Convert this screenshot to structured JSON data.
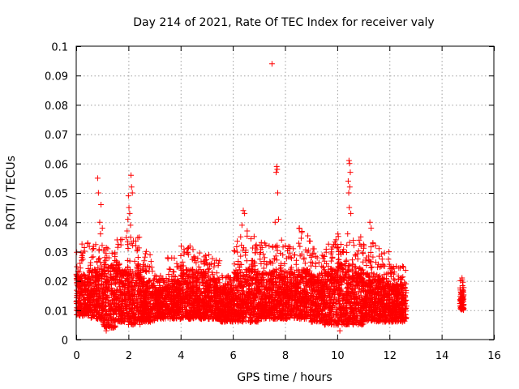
{
  "chart_data": {
    "type": "scatter",
    "title": "Day 214 of 2021, Rate Of TEC Index for receiver valy",
    "xlabel": "GPS time / hours",
    "ylabel": "ROTI / TECUs",
    "xlim": [
      0,
      16
    ],
    "ylim": [
      0,
      0.1
    ],
    "xticks": [
      0,
      2,
      4,
      6,
      8,
      10,
      12,
      14,
      16
    ],
    "xtick_labels": [
      "0",
      "2",
      "4",
      "6",
      "8",
      "10",
      "12",
      "14",
      "16"
    ],
    "yticks": [
      0,
      0.01,
      0.02,
      0.03,
      0.04,
      0.05,
      0.06,
      0.07,
      0.08,
      0.09,
      0.1
    ],
    "ytick_labels": [
      "0",
      "0.01",
      "0.02",
      "0.03",
      "0.04",
      "0.05",
      "0.06",
      "0.07",
      "0.08",
      "0.09",
      "0.1"
    ],
    "grid": true,
    "marker": "+",
    "color": "#ff0000",
    "bands": [
      {
        "x": [
          0.0,
          0.5
        ],
        "base": [
          0.008,
          0.022
        ],
        "max": 0.034
      },
      {
        "x": [
          0.5,
          1.0
        ],
        "base": [
          0.007,
          0.024
        ],
        "max": 0.033
      },
      {
        "x": [
          1.0,
          1.5
        ],
        "base": [
          0.004,
          0.025
        ],
        "max": 0.033
      },
      {
        "x": [
          1.5,
          2.0
        ],
        "base": [
          0.006,
          0.024
        ],
        "max": 0.036
      },
      {
        "x": [
          2.0,
          2.5
        ],
        "base": [
          0.005,
          0.024
        ],
        "max": 0.035
      },
      {
        "x": [
          2.5,
          3.0
        ],
        "base": [
          0.006,
          0.021
        ],
        "max": 0.031
      },
      {
        "x": [
          3.0,
          3.5
        ],
        "base": [
          0.007,
          0.018
        ],
        "max": 0.022
      },
      {
        "x": [
          3.5,
          4.0
        ],
        "base": [
          0.007,
          0.02
        ],
        "max": 0.028
      },
      {
        "x": [
          4.0,
          4.5
        ],
        "base": [
          0.007,
          0.024
        ],
        "max": 0.032
      },
      {
        "x": [
          4.5,
          5.0
        ],
        "base": [
          0.007,
          0.023
        ],
        "max": 0.03
      },
      {
        "x": [
          5.0,
          5.5
        ],
        "base": [
          0.007,
          0.021
        ],
        "max": 0.03
      },
      {
        "x": [
          5.5,
          6.0
        ],
        "base": [
          0.006,
          0.018
        ],
        "max": 0.022
      },
      {
        "x": [
          6.0,
          6.5
        ],
        "base": [
          0.006,
          0.023
        ],
        "max": 0.034
      },
      {
        "x": [
          6.5,
          7.0
        ],
        "base": [
          0.006,
          0.024
        ],
        "max": 0.036
      },
      {
        "x": [
          7.0,
          7.5
        ],
        "base": [
          0.007,
          0.023
        ],
        "max": 0.034
      },
      {
        "x": [
          7.5,
          8.0
        ],
        "base": [
          0.007,
          0.024
        ],
        "max": 0.035
      },
      {
        "x": [
          8.0,
          8.5
        ],
        "base": [
          0.007,
          0.023
        ],
        "max": 0.032
      },
      {
        "x": [
          8.5,
          9.0
        ],
        "base": [
          0.007,
          0.024
        ],
        "max": 0.038
      },
      {
        "x": [
          9.0,
          9.5
        ],
        "base": [
          0.006,
          0.022
        ],
        "max": 0.031
      },
      {
        "x": [
          9.5,
          10.0
        ],
        "base": [
          0.005,
          0.024
        ],
        "max": 0.034
      },
      {
        "x": [
          10.0,
          10.5
        ],
        "base": [
          0.005,
          0.026
        ],
        "max": 0.036
      },
      {
        "x": [
          10.5,
          11.0
        ],
        "base": [
          0.005,
          0.024
        ],
        "max": 0.034
      },
      {
        "x": [
          11.0,
          11.5
        ],
        "base": [
          0.006,
          0.023
        ],
        "max": 0.033
      },
      {
        "x": [
          11.5,
          12.0
        ],
        "base": [
          0.006,
          0.021
        ],
        "max": 0.03
      },
      {
        "x": [
          12.0,
          12.65
        ],
        "base": [
          0.006,
          0.019
        ],
        "max": 0.025
      },
      {
        "x": [
          14.7,
          14.85
        ],
        "base": [
          0.01,
          0.017
        ],
        "max": 0.021
      }
    ],
    "outliers": [
      {
        "x": 0.82,
        "y": 0.055
      },
      {
        "x": 0.85,
        "y": 0.05
      },
      {
        "x": 0.95,
        "y": 0.046
      },
      {
        "x": 0.9,
        "y": 0.04
      },
      {
        "x": 1.0,
        "y": 0.038
      },
      {
        "x": 0.93,
        "y": 0.036
      },
      {
        "x": 2.1,
        "y": 0.056
      },
      {
        "x": 2.12,
        "y": 0.052
      },
      {
        "x": 2.15,
        "y": 0.05
      },
      {
        "x": 2.0,
        "y": 0.049
      },
      {
        "x": 2.02,
        "y": 0.045
      },
      {
        "x": 2.05,
        "y": 0.043
      },
      {
        "x": 1.98,
        "y": 0.041
      },
      {
        "x": 2.08,
        "y": 0.039
      },
      {
        "x": 1.95,
        "y": 0.037
      },
      {
        "x": 1.7,
        "y": 0.034
      },
      {
        "x": 6.4,
        "y": 0.044
      },
      {
        "x": 6.45,
        "y": 0.043
      },
      {
        "x": 6.35,
        "y": 0.039
      },
      {
        "x": 6.55,
        "y": 0.037
      },
      {
        "x": 6.3,
        "y": 0.035
      },
      {
        "x": 7.5,
        "y": 0.094
      },
      {
        "x": 7.68,
        "y": 0.059
      },
      {
        "x": 7.7,
        "y": 0.058
      },
      {
        "x": 7.66,
        "y": 0.057
      },
      {
        "x": 7.72,
        "y": 0.05
      },
      {
        "x": 7.75,
        "y": 0.041
      },
      {
        "x": 7.62,
        "y": 0.04
      },
      {
        "x": 8.55,
        "y": 0.038
      },
      {
        "x": 9.95,
        "y": 0.034
      },
      {
        "x": 10.45,
        "y": 0.061
      },
      {
        "x": 10.47,
        "y": 0.06
      },
      {
        "x": 10.5,
        "y": 0.057
      },
      {
        "x": 10.42,
        "y": 0.054
      },
      {
        "x": 10.48,
        "y": 0.052
      },
      {
        "x": 10.44,
        "y": 0.05
      },
      {
        "x": 10.46,
        "y": 0.045
      },
      {
        "x": 10.52,
        "y": 0.043
      },
      {
        "x": 10.4,
        "y": 0.036
      },
      {
        "x": 11.25,
        "y": 0.04
      },
      {
        "x": 11.3,
        "y": 0.038
      },
      {
        "x": 10.9,
        "y": 0.035
      },
      {
        "x": 11.6,
        "y": 0.031
      },
      {
        "x": 1.15,
        "y": 0.003
      },
      {
        "x": 10.1,
        "y": 0.003
      },
      {
        "x": 12.5,
        "y": 0.025
      },
      {
        "x": 14.78,
        "y": 0.021
      }
    ]
  }
}
